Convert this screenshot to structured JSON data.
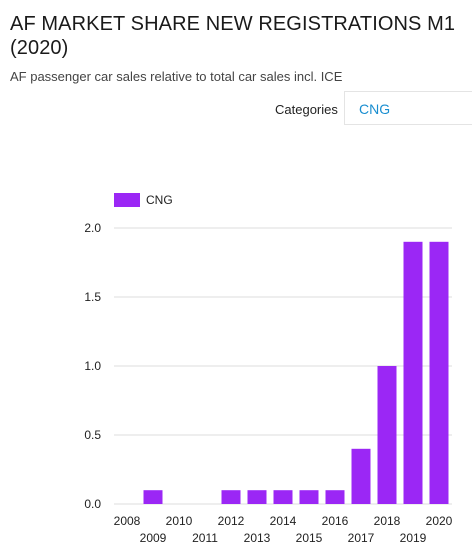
{
  "header": {
    "title": "AF MARKET SHARE NEW REGISTRATIONS M1 (2020)",
    "subtitle": "AF passenger car sales relative to total car sales incl. ICE"
  },
  "filter": {
    "label": "Categories",
    "selected": "CNG"
  },
  "colors": {
    "bar": "#9b27f5",
    "grid": "#dddddd",
    "link": "#1a8ed0"
  },
  "chart_data": {
    "type": "bar",
    "title": "AF MARKET SHARE NEW REGISTRATIONS M1 (2020)",
    "subtitle": "AF passenger car sales relative to total car sales incl. ICE",
    "categories": [
      "2008",
      "2009",
      "2010",
      "2011",
      "2012",
      "2013",
      "2014",
      "2015",
      "2016",
      "2017",
      "2018",
      "2019",
      "2020"
    ],
    "series": [
      {
        "name": "CNG",
        "values": [
          0,
          0.1,
          0,
          0,
          0.1,
          0.1,
          0.1,
          0.1,
          0.1,
          0.4,
          1.0,
          1.9,
          1.9
        ]
      }
    ],
    "ylim": [
      0,
      2.0
    ],
    "yticks": [
      "0.0",
      "0.5",
      "1.0",
      "1.5",
      "2.0"
    ],
    "xlabel": "",
    "ylabel": "",
    "grid": true,
    "legend": "top-left"
  }
}
